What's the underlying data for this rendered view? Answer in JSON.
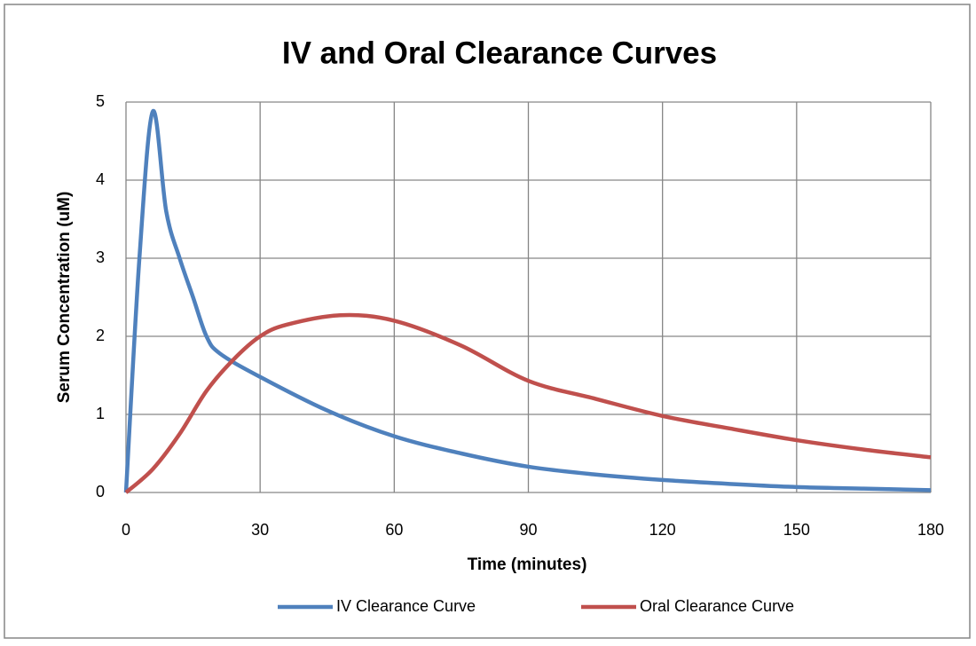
{
  "chart_data": {
    "type": "line",
    "title": "IV and Oral Clearance Curves",
    "x_label": "Time (minutes)",
    "y_label": "Serum Concentration (uM)",
    "series": [
      {
        "name": "IV Clearance Curve",
        "color": "#4f81bd",
        "x": [
          0,
          3,
          6,
          9,
          12,
          15,
          18,
          21,
          30,
          45,
          60,
          75,
          90,
          105,
          120,
          135,
          150,
          165,
          180
        ],
        "values": [
          0,
          3.0,
          4.88,
          3.6,
          3.0,
          2.5,
          2.0,
          1.78,
          1.48,
          1.05,
          0.72,
          0.5,
          0.33,
          0.23,
          0.16,
          0.11,
          0.07,
          0.05,
          0.03
        ]
      },
      {
        "name": "Oral Clearance Curve",
        "color": "#c0504d",
        "x": [
          0,
          6,
          12,
          18,
          24,
          30,
          36,
          48,
          60,
          75,
          90,
          105,
          120,
          135,
          150,
          165,
          180
        ],
        "values": [
          0,
          0.3,
          0.75,
          1.3,
          1.7,
          2.0,
          2.15,
          2.27,
          2.2,
          1.88,
          1.43,
          1.2,
          0.98,
          0.82,
          0.67,
          0.55,
          0.45
        ]
      }
    ],
    "xlim": [
      0,
      180
    ],
    "xticks": [
      0,
      30,
      60,
      90,
      120,
      150,
      180
    ],
    "ylim": [
      0,
      5
    ],
    "yticks": [
      0,
      1,
      2,
      3,
      4,
      5
    ],
    "grid": true,
    "legend": "bottom"
  }
}
